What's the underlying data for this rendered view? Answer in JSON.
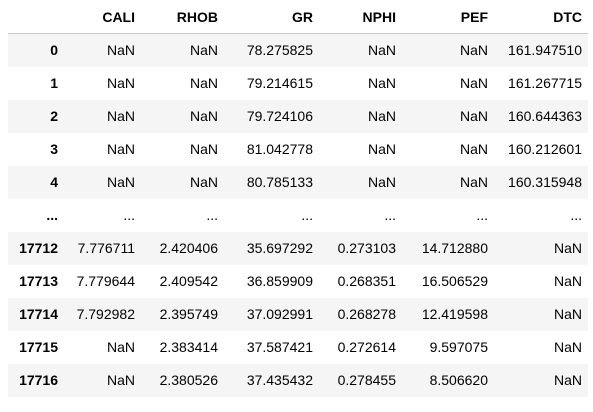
{
  "table": {
    "columns": [
      "",
      "CALI",
      "RHOB",
      "GR",
      "NPHI",
      "PEF",
      "DTC"
    ],
    "rows": [
      {
        "index": "0",
        "cells": [
          "NaN",
          "NaN",
          "78.275825",
          "NaN",
          "NaN",
          "161.947510"
        ]
      },
      {
        "index": "1",
        "cells": [
          "NaN",
          "NaN",
          "79.214615",
          "NaN",
          "NaN",
          "161.267715"
        ]
      },
      {
        "index": "2",
        "cells": [
          "NaN",
          "NaN",
          "79.724106",
          "NaN",
          "NaN",
          "160.644363"
        ]
      },
      {
        "index": "3",
        "cells": [
          "NaN",
          "NaN",
          "81.042778",
          "NaN",
          "NaN",
          "160.212601"
        ]
      },
      {
        "index": "4",
        "cells": [
          "NaN",
          "NaN",
          "80.785133",
          "NaN",
          "NaN",
          "160.315948"
        ]
      },
      {
        "index": "...",
        "cells": [
          "...",
          "...",
          "...",
          "...",
          "...",
          "..."
        ]
      },
      {
        "index": "17712",
        "cells": [
          "7.776711",
          "2.420406",
          "35.697292",
          "0.273103",
          "14.712880",
          "NaN"
        ]
      },
      {
        "index": "17713",
        "cells": [
          "7.779644",
          "2.409542",
          "36.859909",
          "0.268351",
          "16.506529",
          "NaN"
        ]
      },
      {
        "index": "17714",
        "cells": [
          "7.792982",
          "2.395749",
          "37.092991",
          "0.268278",
          "12.419598",
          "NaN"
        ]
      },
      {
        "index": "17715",
        "cells": [
          "NaN",
          "2.383414",
          "37.587421",
          "0.272614",
          "9.597075",
          "NaN"
        ]
      },
      {
        "index": "17716",
        "cells": [
          "NaN",
          "2.380526",
          "37.435432",
          "0.278455",
          "8.506620",
          "NaN"
        ]
      }
    ]
  }
}
